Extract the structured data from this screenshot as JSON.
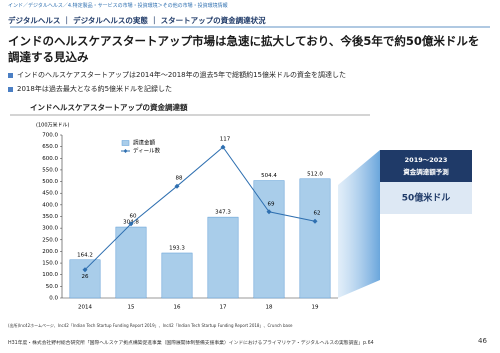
{
  "breadcrumb": "インド／デジタルヘルス／4.特定製品・サービスの市場・投資環境＞その他の市場・投資環境情報",
  "section": "デジタルヘルス ｜ デジタルヘルスの実態 ｜ スタートアップの資金調達状況",
  "title": "インドのヘルスケアスタートアップ市場は急速に拡大しており、今後5年で約50億米ドルを調達する見込み",
  "bullets": [
    "インドのヘルスケアスタートアップは2014年～2018年の過去5年で総額約15億米ドルの資金を調達した",
    "2018年は過去最大となる約5億米ドルを記録した"
  ],
  "chart_data": {
    "type": "combo",
    "title": "インドヘルスケアスタートアップの資金調達額",
    "unit": "(100万米ドル)",
    "categories": [
      "2014",
      "15",
      "16",
      "17",
      "18",
      "19"
    ],
    "series": [
      {
        "name": "調達金額",
        "type": "bar",
        "color": "#a9cdea",
        "values": [
          164.2,
          304.8,
          193.3,
          347.3,
          504.4,
          512.0
        ],
        "value_labels": [
          "164.2",
          "304.8",
          "193.3",
          "347.3",
          "504.4",
          "512.0"
        ]
      },
      {
        "name": "ディール数",
        "type": "line",
        "axis": "y2",
        "color": "#2e6fb0",
        "values": [
          26,
          60,
          88,
          117,
          69,
          62
        ]
      }
    ],
    "ylim": [
      0,
      700
    ],
    "yticks": [
      {
        "value": 0,
        "label": "0.0"
      },
      {
        "value": 50,
        "label": "50.0"
      },
      {
        "value": 100,
        "label": "100.0"
      },
      {
        "value": 150,
        "label": "150.0"
      },
      {
        "value": 200,
        "label": "200.0"
      },
      {
        "value": 250,
        "label": "250.0"
      },
      {
        "value": 300,
        "label": "300.0"
      },
      {
        "value": 350,
        "label": "350.0"
      },
      {
        "value": 400,
        "label": "400.0"
      },
      {
        "value": 450,
        "label": "450.0"
      },
      {
        "value": 500,
        "label": "500.0"
      },
      {
        "value": 550,
        "label": "550.0"
      },
      {
        "value": 600,
        "label": "600.0"
      },
      {
        "value": 650,
        "label": "650.0"
      },
      {
        "value": 700,
        "label": "700.0"
      }
    ],
    "y2lim": [
      5,
      126
    ]
  },
  "callout": {
    "period": "2019～2023",
    "label": "資金調達額予測",
    "value": "50億米ドル"
  },
  "source": "(出所)Inc42ホームページ、Inc42「Indian Tech Startup Funding Report 2019」、Inc42「Indian Tech Startup Funding Report 2018」、Crunch base",
  "footer": "H31年度・株式会社野村総合研究所「国際ヘルスケア拠点構築促進事業（国際展開体制整備支援事業）インドにおけるプライマリケア・デジタルヘルスの実態調査」p.64",
  "page_number": "46"
}
